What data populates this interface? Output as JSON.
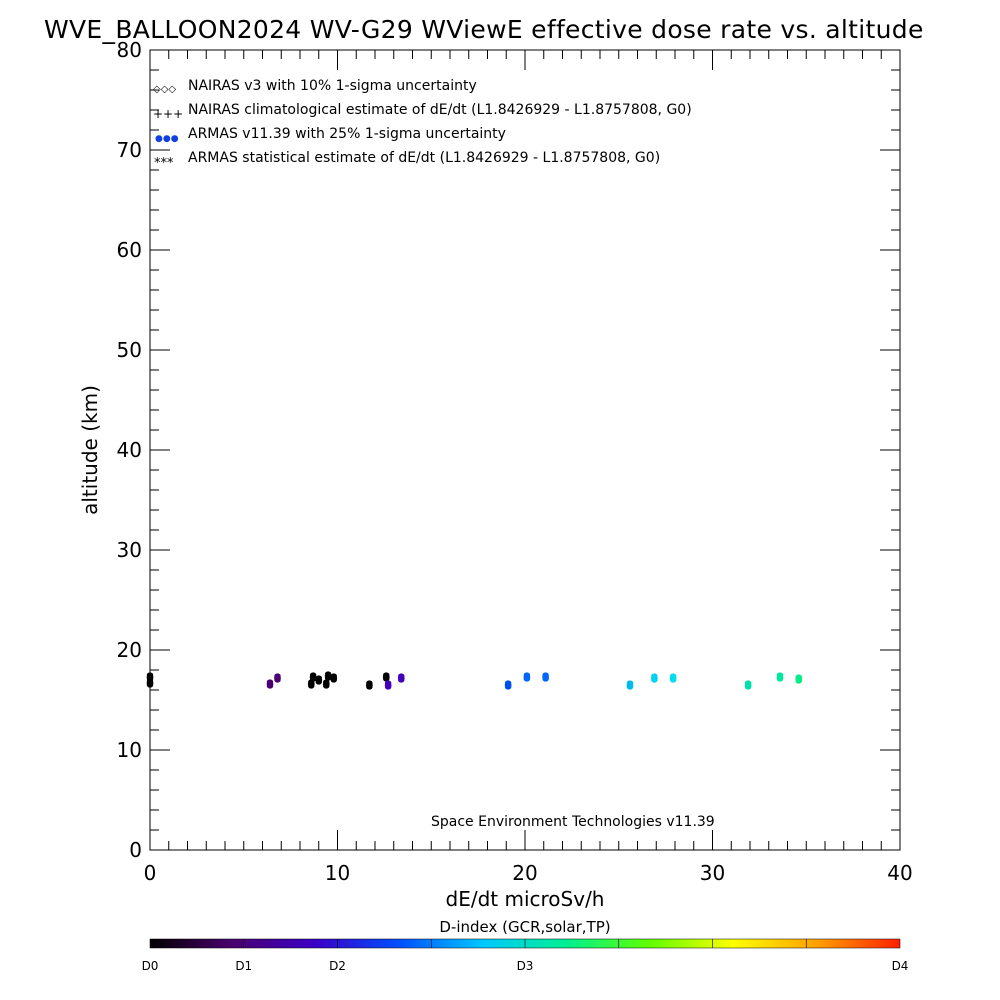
{
  "chart_data": {
    "type": "scatter",
    "title": "WVE_BALLOON2024 WV-G29 WViewE effective dose rate vs. altitude",
    "xlabel": "dE/dt microSv/h",
    "ylabel": "altitude (km)",
    "xlim": [
      0,
      40
    ],
    "ylim": [
      0,
      80
    ],
    "x_ticks": [
      "0",
      "10",
      "20",
      "30",
      "40"
    ],
    "y_ticks": [
      "0",
      "10",
      "20",
      "30",
      "40",
      "50",
      "60",
      "70",
      "80"
    ],
    "grid": false,
    "legend_position": "top-left",
    "legend": [
      {
        "symbol": "◇◇◇",
        "label": "NAIRAS v3 with 10% 1-sigma uncertainty"
      },
      {
        "symbol": "+++",
        "label": "NAIRAS climatological estimate of dE/dt (L1.8426929 - L1.8757808, G0)"
      },
      {
        "symbol": "●●●",
        "label": "ARMAS v11.39 with 25% 1-sigma uncertainty"
      },
      {
        "symbol": "***",
        "label": "ARMAS statistical estimate of dE/dt (L1.8426929 - L1.8757808, G0)"
      }
    ],
    "annotation": "Space Environment Technologies v11.39",
    "series": [
      {
        "name": "ARMAS v11.39 with 25% 1-sigma uncertainty",
        "points": [
          {
            "x": 0.0,
            "y": 16.7,
            "color": "#000000"
          },
          {
            "x": 0.0,
            "y": 17.3,
            "color": "#000000"
          },
          {
            "x": 6.4,
            "y": 16.6,
            "color": "#4a0070"
          },
          {
            "x": 6.8,
            "y": 17.2,
            "color": "#4a0070"
          },
          {
            "x": 8.6,
            "y": 16.6,
            "color": "#000000"
          },
          {
            "x": 8.7,
            "y": 17.3,
            "color": "#000000"
          },
          {
            "x": 9.0,
            "y": 17.0,
            "color": "#000000"
          },
          {
            "x": 9.4,
            "y": 16.6,
            "color": "#000000"
          },
          {
            "x": 9.5,
            "y": 17.4,
            "color": "#000000"
          },
          {
            "x": 9.8,
            "y": 17.2,
            "color": "#000000"
          },
          {
            "x": 11.7,
            "y": 16.5,
            "color": "#000000"
          },
          {
            "x": 12.6,
            "y": 17.3,
            "color": "#000000"
          },
          {
            "x": 12.7,
            "y": 16.5,
            "color": "#4400bb"
          },
          {
            "x": 13.4,
            "y": 17.2,
            "color": "#4400bb"
          },
          {
            "x": 19.1,
            "y": 16.5,
            "color": "#0050ee"
          },
          {
            "x": 20.1,
            "y": 17.3,
            "color": "#0066ff"
          },
          {
            "x": 21.1,
            "y": 17.3,
            "color": "#0066ff"
          },
          {
            "x": 25.6,
            "y": 16.5,
            "color": "#00bbee"
          },
          {
            "x": 26.9,
            "y": 17.2,
            "color": "#00d2f0"
          },
          {
            "x": 27.9,
            "y": 17.2,
            "color": "#00ddee"
          },
          {
            "x": 31.9,
            "y": 16.5,
            "color": "#00e0a8"
          },
          {
            "x": 33.6,
            "y": 17.3,
            "color": "#00e8a0"
          },
          {
            "x": 34.6,
            "y": 17.1,
            "color": "#00ee88"
          }
        ]
      }
    ],
    "colorbar": {
      "title": "D-index (GCR,solar,TP)",
      "labels": [
        {
          "text": "D0",
          "pos": 0.0
        },
        {
          "text": "D1",
          "pos": 0.125
        },
        {
          "text": "D2",
          "pos": 0.25
        },
        {
          "text": "D3",
          "pos": 0.5
        },
        {
          "text": "D4",
          "pos": 1.0
        }
      ],
      "colors": [
        "#000000",
        "#4a0070",
        "#3a00c8",
        "#0050ff",
        "#00c8ff",
        "#00f090",
        "#60ff00",
        "#ffff00",
        "#ffa000",
        "#ff2000"
      ]
    }
  }
}
